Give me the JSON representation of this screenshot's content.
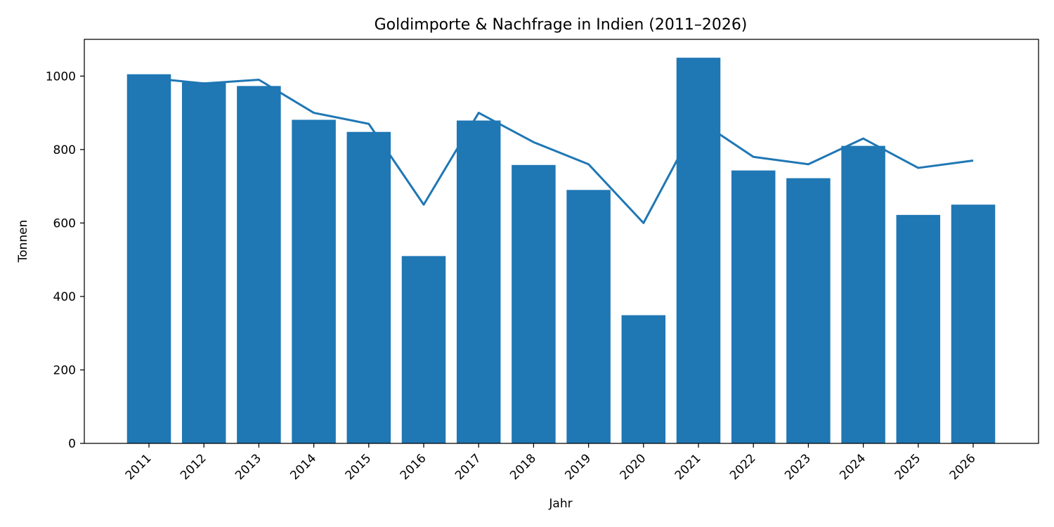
{
  "chart_data": {
    "type": "bar",
    "title": "Goldimporte & Nachfrage in Indien (2011–2026)",
    "xlabel": "Jahr",
    "ylabel": "Tonnen",
    "categories": [
      "2011",
      "2012",
      "2013",
      "2014",
      "2015",
      "2016",
      "2017",
      "2018",
      "2019",
      "2020",
      "2021",
      "2022",
      "2023",
      "2024",
      "2025",
      "2026"
    ],
    "ylim": [
      0,
      1100
    ],
    "yticks": [
      0,
      200,
      400,
      600,
      800,
      1000
    ],
    "grid": false,
    "series": [
      {
        "type": "bar",
        "color": "#1f77b4",
        "values": [
          1005,
          983,
          973,
          881,
          848,
          510,
          879,
          758,
          690,
          349,
          1050,
          743,
          722,
          810,
          622,
          650
        ]
      },
      {
        "type": "line",
        "color": "#1f77b4",
        "values": [
          995,
          980,
          990,
          900,
          870,
          650,
          900,
          820,
          760,
          600,
          880,
          780,
          760,
          830,
          750,
          770
        ]
      }
    ]
  }
}
